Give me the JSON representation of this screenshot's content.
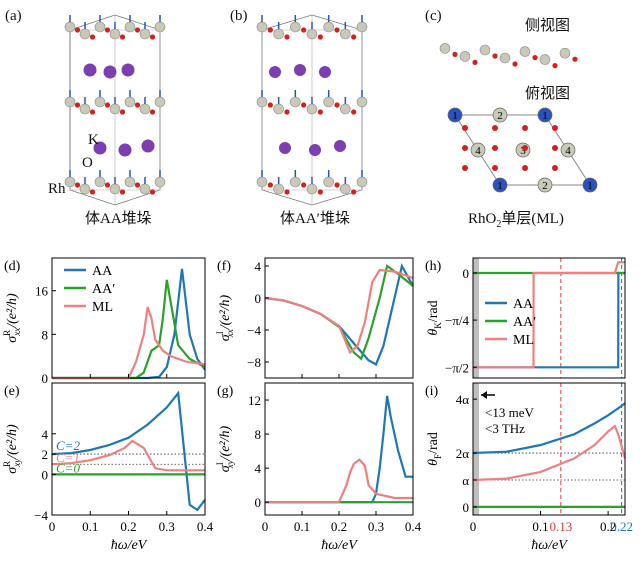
{
  "figure": {
    "top": {
      "a": {
        "label": "(a)",
        "caption": "体AA堆垛",
        "atoms": {
          "rh": "Rh",
          "o": "O",
          "k": "K"
        }
      },
      "b": {
        "label": "(b)",
        "caption": "体AA′堆垛"
      },
      "c": {
        "label": "(c)",
        "caption_pre": "RhO",
        "caption_sub": "2",
        "caption_post": "单层(ML)",
        "side_view": "侧视图",
        "top_view": "俯视图",
        "site_numbers": [
          "1",
          "2",
          "1",
          "4",
          "3",
          "4",
          "1",
          "2",
          "1"
        ]
      }
    },
    "colors": {
      "aa": "#1f77b4",
      "aap": "#2ca02c",
      "ml": "#f08080",
      "red_line": "#e8393a",
      "blue_line": "#1f77b4",
      "gray_band": "#bfbfbf"
    },
    "panels": {
      "d": {
        "label": "(d)",
        "ylabel_main": "σ",
        "ylabel_sup": "R",
        "ylabel_sub": "xx",
        "ylabel_tail": "/(e²/h)",
        "legend": [
          "AA",
          "AA′",
          "ML"
        ]
      },
      "e": {
        "label": "(e)",
        "ylabel_main": "σ",
        "ylabel_sup": "R",
        "ylabel_sub": "xy",
        "ylabel_tail": "/(e²/h)",
        "c_labels": [
          "C=2",
          "C=1",
          "C=0"
        ]
      },
      "f": {
        "label": "(f)",
        "ylabel_main": "σ",
        "ylabel_sup": "I",
        "ylabel_sub": "xx",
        "ylabel_tail": "/(e²/h)"
      },
      "g": {
        "label": "(g)",
        "ylabel_main": "σ",
        "ylabel_sup": "I",
        "ylabel_sub": "xy",
        "ylabel_tail": "/(e²/h)"
      },
      "h": {
        "label": "(h)",
        "ylabel": "θ",
        "ylabel_sub": "K",
        "ylabel_tail": "/rad",
        "legend": [
          "AA",
          "AA′",
          "ML"
        ]
      },
      "i": {
        "label": "(i)",
        "ylabel": "θ",
        "ylabel_sub": "F",
        "ylabel_tail": "/rad",
        "annotation_1": "<13 meV",
        "annotation_2": "<3 THz"
      }
    },
    "xlabel": "ħω/eV",
    "x_special": {
      "red": "0.13",
      "blue": "0.22"
    }
  },
  "chart_data": [
    {
      "type": "line",
      "id": "d",
      "xlim": [
        0,
        0.4
      ],
      "ylim": [
        0,
        22
      ],
      "xticks": [
        "0",
        "0.1",
        "0.2",
        "0.3",
        "0.4"
      ],
      "yticks": [
        {
          "v": 0,
          "t": "0"
        },
        {
          "v": 8,
          "t": "8"
        },
        {
          "v": 16,
          "t": "16"
        }
      ],
      "series": [
        {
          "name": "AA",
          "color": "#1f77b4",
          "x": [
            0,
            0.25,
            0.28,
            0.3,
            0.32,
            0.335,
            0.34,
            0.36,
            0.38,
            0.4
          ],
          "y": [
            0,
            0,
            0.2,
            2,
            8,
            17,
            20,
            8,
            3.5,
            1.5
          ]
        },
        {
          "name": "AA′",
          "color": "#2ca02c",
          "x": [
            0,
            0.22,
            0.24,
            0.26,
            0.28,
            0.29,
            0.3,
            0.31,
            0.33,
            0.36,
            0.4
          ],
          "y": [
            0,
            0,
            1,
            5,
            6,
            11,
            18,
            14,
            6,
            3.5,
            2
          ]
        },
        {
          "name": "ML",
          "color": "#f08080",
          "x": [
            0,
            0.2,
            0.22,
            0.24,
            0.25,
            0.26,
            0.27,
            0.29,
            0.31,
            0.35,
            0.4
          ],
          "y": [
            0,
            0,
            3,
            8,
            13,
            11,
            7,
            5,
            4,
            3,
            2.5
          ]
        }
      ]
    },
    {
      "type": "line",
      "id": "e",
      "xlim": [
        0,
        0.4
      ],
      "ylim": [
        -4,
        9
      ],
      "xticks": [
        "0",
        "0.1",
        "0.2",
        "0.3",
        "0.4"
      ],
      "yticks": [
        {
          "v": -4,
          "t": "−4"
        },
        {
          "v": 0,
          "t": "0"
        },
        {
          "v": 2,
          "t": "2"
        },
        {
          "v": 4,
          "t": "4"
        }
      ],
      "hlines": [
        1,
        2
      ],
      "series": [
        {
          "name": "AA",
          "color": "#1f77b4",
          "x": [
            0,
            0.05,
            0.1,
            0.15,
            0.2,
            0.25,
            0.3,
            0.33,
            0.36,
            0.38,
            0.4
          ],
          "y": [
            2,
            2.1,
            2.4,
            2.9,
            3.6,
            4.9,
            6.6,
            8.0,
            -3.0,
            -3.5,
            -2.5
          ]
        },
        {
          "name": "AA′",
          "color": "#2ca02c",
          "x": [
            0,
            0.4
          ],
          "y": [
            0,
            0
          ]
        },
        {
          "name": "ML",
          "color": "#f08080",
          "x": [
            0,
            0.05,
            0.1,
            0.15,
            0.19,
            0.21,
            0.24,
            0.27,
            0.3,
            0.35,
            0.4
          ],
          "y": [
            1,
            1.1,
            1.4,
            1.9,
            2.6,
            3.3,
            2.6,
            0.6,
            0.4,
            0.4,
            0.4
          ]
        }
      ]
    },
    {
      "type": "line",
      "id": "f",
      "xlim": [
        0,
        0.4
      ],
      "ylim": [
        -10,
        5
      ],
      "xticks": [
        "0",
        "0.1",
        "0.2",
        "0.3",
        "0.4"
      ],
      "yticks": [
        {
          "v": -8,
          "t": "−8"
        },
        {
          "v": -4,
          "t": "−4"
        },
        {
          "v": 0,
          "t": "0"
        },
        {
          "v": 4,
          "t": "4"
        }
      ],
      "series": [
        {
          "name": "AA",
          "color": "#1f77b4",
          "x": [
            0,
            0.05,
            0.1,
            0.15,
            0.2,
            0.25,
            0.28,
            0.3,
            0.32,
            0.35,
            0.37,
            0.4
          ],
          "y": [
            0,
            -0.3,
            -1,
            -2,
            -3.5,
            -6.2,
            -7.8,
            -8.3,
            -6,
            0,
            4,
            1.5
          ]
        },
        {
          "name": "AA′",
          "color": "#2ca02c",
          "x": [
            0,
            0.05,
            0.1,
            0.15,
            0.2,
            0.24,
            0.26,
            0.28,
            0.31,
            0.33,
            0.36,
            0.4
          ],
          "y": [
            0,
            -0.3,
            -1,
            -2,
            -3.6,
            -6.8,
            -7.6,
            -5,
            0,
            4,
            3,
            1.5
          ]
        },
        {
          "name": "ML",
          "color": "#f08080",
          "x": [
            0,
            0.05,
            0.1,
            0.15,
            0.2,
            0.23,
            0.25,
            0.27,
            0.29,
            0.31,
            0.35,
            0.4
          ],
          "y": [
            0,
            -0.3,
            -1,
            -2,
            -3.5,
            -6.8,
            -6,
            -3,
            2,
            3.5,
            3.3,
            2.5
          ]
        }
      ]
    },
    {
      "type": "line",
      "id": "g",
      "xlim": [
        0,
        0.4
      ],
      "ylim": [
        -1.5,
        14
      ],
      "xticks": [
        "0",
        "0.1",
        "0.2",
        "0.3",
        "0.4"
      ],
      "yticks": [
        {
          "v": 0,
          "t": "0"
        },
        {
          "v": 4,
          "t": "4"
        },
        {
          "v": 8,
          "t": "8"
        },
        {
          "v": 12,
          "t": "12"
        }
      ],
      "series": [
        {
          "name": "AA",
          "color": "#1f77b4",
          "x": [
            0,
            0.29,
            0.3,
            0.31,
            0.32,
            0.33,
            0.34,
            0.36,
            0.38,
            0.4
          ],
          "y": [
            0,
            0,
            1,
            4,
            8,
            12.5,
            10,
            6,
            3,
            3
          ]
        },
        {
          "name": "AA′",
          "color": "#2ca02c",
          "x": [
            0,
            0.4
          ],
          "y": [
            0,
            0
          ]
        },
        {
          "name": "ML",
          "color": "#f08080",
          "x": [
            0,
            0.2,
            0.22,
            0.23,
            0.24,
            0.255,
            0.27,
            0.28,
            0.3,
            0.35,
            0.4
          ],
          "y": [
            0,
            0,
            2,
            3.5,
            4.5,
            5,
            4.3,
            2,
            1,
            0.5,
            0.5
          ]
        }
      ]
    },
    {
      "type": "line",
      "id": "h",
      "xlim": [
        0,
        0.225
      ],
      "ylim": [
        -1.75,
        0.25
      ],
      "xticks": [],
      "yticks": [
        {
          "v": 0,
          "t": "0"
        },
        {
          "v": -0.785,
          "t": "−π/4"
        },
        {
          "v": -1.571,
          "t": "−π/2"
        }
      ],
      "vlines": [
        {
          "x": 0.13,
          "color": "#e8393a"
        },
        {
          "x": 0.22,
          "color": "#1f77b4"
        }
      ],
      "gray_band": [
        0,
        0.0036
      ],
      "series": [
        {
          "name": "AA",
          "color": "#1f77b4",
          "x": [
            0,
            0.215,
            0.2152,
            0.225
          ],
          "y": [
            -1.571,
            -1.571,
            0,
            0
          ]
        },
        {
          "name": "AA′",
          "color": "#2ca02c",
          "x": [
            0,
            0.225
          ],
          "y": [
            0,
            0
          ]
        },
        {
          "name": "ML",
          "color": "#f08080",
          "x": [
            0,
            0.0895,
            0.0897,
            0.21,
            0.215,
            0.225
          ],
          "y": [
            -1.571,
            -1.571,
            0,
            0,
            0.18,
            0.18
          ]
        }
      ]
    },
    {
      "type": "line",
      "id": "i",
      "xlim": [
        0,
        0.225
      ],
      "ylim": [
        -0.3,
        4.6
      ],
      "xticks": [
        "0",
        "0.1",
        "0.2"
      ],
      "yticks": [
        {
          "v": 0,
          "t": "0"
        },
        {
          "v": 1,
          "t": "α"
        },
        {
          "v": 2,
          "t": "2α"
        },
        {
          "v": 4,
          "t": "4α"
        }
      ],
      "hlines": [
        1,
        2
      ],
      "vlines": [
        {
          "x": 0.13,
          "color": "#e8393a"
        },
        {
          "x": 0.22,
          "color": "#1f77b4"
        }
      ],
      "gray_band": [
        0,
        0.0036
      ],
      "series": [
        {
          "name": "AA",
          "color": "#1f77b4",
          "x": [
            0,
            0.05,
            0.1,
            0.15,
            0.18,
            0.2,
            0.22,
            0.225
          ],
          "y": [
            2,
            2.05,
            2.3,
            2.7,
            3.1,
            3.4,
            3.75,
            3.85
          ]
        },
        {
          "name": "AA′",
          "color": "#2ca02c",
          "x": [
            0,
            0.225
          ],
          "y": [
            0,
            0
          ]
        },
        {
          "name": "ML",
          "color": "#f08080",
          "x": [
            0,
            0.05,
            0.1,
            0.15,
            0.18,
            0.2,
            0.21,
            0.215,
            0.225
          ],
          "y": [
            1,
            1.05,
            1.3,
            1.8,
            2.3,
            2.8,
            3.0,
            2.7,
            1.8
          ]
        }
      ]
    }
  ]
}
